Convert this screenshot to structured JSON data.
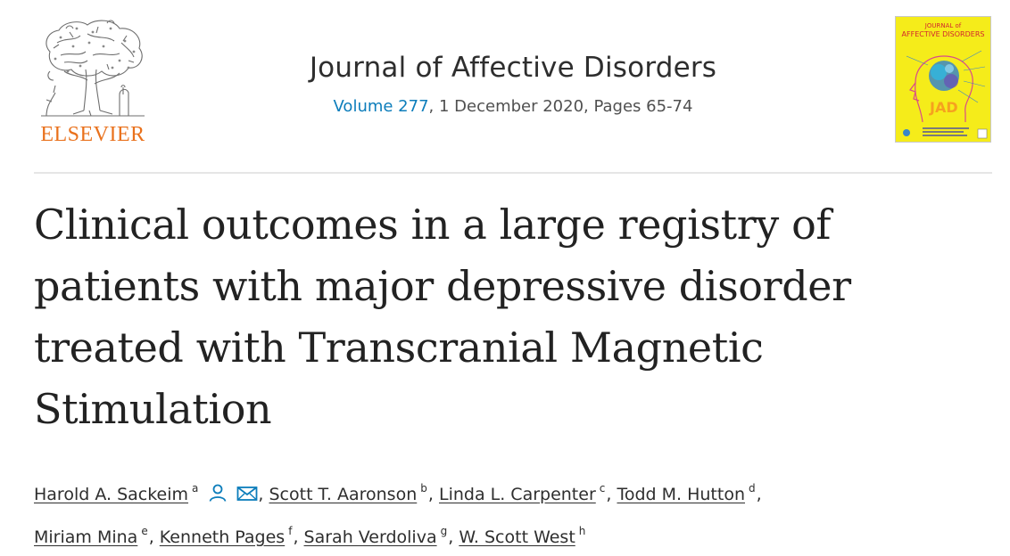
{
  "publisher": {
    "name": "ELSEVIER",
    "logo_icon": "elsevier-tree-icon",
    "brand_color": "#e9711c"
  },
  "journal": {
    "title": "Journal of Affective Disorders",
    "volume_label": "Volume 277",
    "citation_rest": ", 1 December 2020, Pages 65-74",
    "link_color": "#0c7dbb"
  },
  "cover": {
    "line1": "JOURNAL of",
    "line2": "AFFECTIVE DISORDERS",
    "abbreviation": "JAD",
    "background_color": "#f5ec1a"
  },
  "article": {
    "title_lines": [
      "Clinical outcomes in a large registry of",
      "patients with major depressive disorder",
      "treated with Transcranial Magnetic",
      "Stimulation"
    ]
  },
  "authors": [
    {
      "name": "Harold A. Sackeim",
      "affiliation": "a",
      "icons": [
        "person-icon",
        "envelope-icon"
      ]
    },
    {
      "name": "Scott T. Aaronson",
      "affiliation": "b"
    },
    {
      "name": "Linda L. Carpenter",
      "affiliation": "c"
    },
    {
      "name": "Todd M. Hutton",
      "affiliation": "d"
    },
    {
      "name": "Miriam Mina",
      "affiliation": "e"
    },
    {
      "name": "Kenneth Pages",
      "affiliation": "f"
    },
    {
      "name": "Sarah Verdoliva",
      "affiliation": "g"
    },
    {
      "name": "W. Scott West",
      "affiliation": "h"
    }
  ],
  "author_separator": ","
}
